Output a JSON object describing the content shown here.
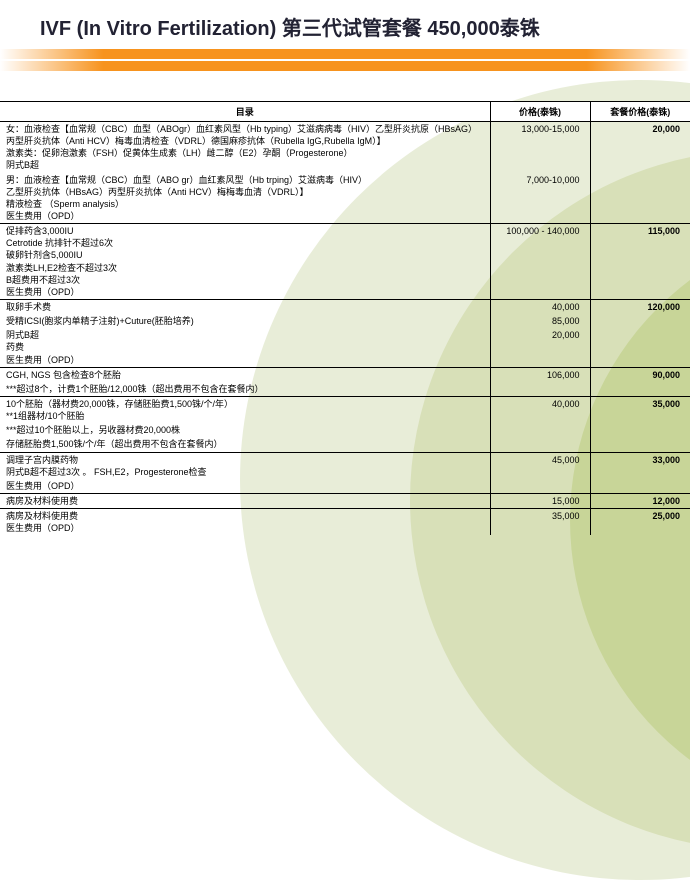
{
  "title": "IVF (In Vitro Fertilization) 第三代试管套餐  450,000泰铢",
  "headers": {
    "desc": "目录",
    "price": "价格(泰铢)",
    "pkg": "套餐价格(泰铢)"
  },
  "sections": [
    {
      "pkg": "20,000",
      "rows": [
        {
          "d": "女：血液检查【血常规（CBC）血型（ABOgr）血红素风型（Hb typing）艾滋病病毒（HIV）乙型肝炎抗原（HBsAG）丙型肝炎抗体（Anti HCV）梅毒血清检查（VDRL）德国麻疹抗体（Rubella IgG,Rubella IgM）】\n激素类：促卵泡激素（FSH）促黄体生成素（LH）雌二醇（E2）孕酮（Progesterone）\n阴式B超",
          "p": "13,000-15,000"
        },
        {
          "d": "男：血液检查【血常规（CBC）血型（ABO gr）血红素风型（Hb trping）艾滋病毒（HIV）\n乙型肝炎抗体（HBsAG）丙型肝炎抗体（Anti HCV）梅梅毒血清（VDRL）】\n精液检查  （Sperm analysis）\n医生费用（OPD）",
          "p": "7,000-10,000"
        }
      ]
    },
    {
      "pkg": "115,000",
      "rows": [
        {
          "d": "促排药含3,000IU\nCetrotide 抗排针不超过6次\n破卵针剂含5,000IU\n  激素类LH,E2检查不超过3次\n  B超费用不超过3次\n医生费用（OPD）",
          "p": "100,000 - 140,000"
        }
      ]
    },
    {
      "pkg": "120,000",
      "rows": [
        {
          "d": "取卵手术费",
          "p": "40,000"
        },
        {
          "d": "受精ICSI(胞浆内单精子注射)+Cuture(胚胎培养)",
          "p": "85,000"
        },
        {
          "d": "阴式B超\n药费\n医生费用（OPD）",
          "p": "20,000"
        }
      ]
    },
    {
      "pkg": "90,000",
      "rows": [
        {
          "d": "CGH, NGS 包含检查8个胚胎",
          "p": "106,000"
        },
        {
          "d": "***超过8个，计费1个胚胎/12,000铢（超出费用不包含在套餐内）",
          "p": ""
        }
      ]
    },
    {
      "pkg": "35,000",
      "rows": [
        {
          "d": "10个胚胎（器材费20,000铢，存储胚胎费1,500铢/个/年）\n**1组器材/10个胚胎",
          "p": "40,000"
        },
        {
          "d": "***超过10个胚胎以上，另收器材费20,000株",
          "p": ""
        },
        {
          "d": "存储胚胎费1,500铢/个/年（超出费用不包含在套餐内）",
          "p": ""
        }
      ]
    },
    {
      "pkg": "33,000",
      "rows": [
        {
          "d": "调理子宫内膜药物\n阴式B超不超过3次  。 FSH,E2，Progesterone检查",
          "p": "45,000"
        },
        {
          "d": "医生费用（OPD）",
          "p": ""
        }
      ]
    },
    {
      "pkg": "12,000",
      "rows": [
        {
          "d": "病房及材料使用费",
          "p": "15,000"
        }
      ]
    },
    {
      "pkg": "25,000",
      "rows": [
        {
          "d": "病房及材料使用费\n医生费用（OPD）",
          "p": "35,000"
        }
      ]
    }
  ]
}
